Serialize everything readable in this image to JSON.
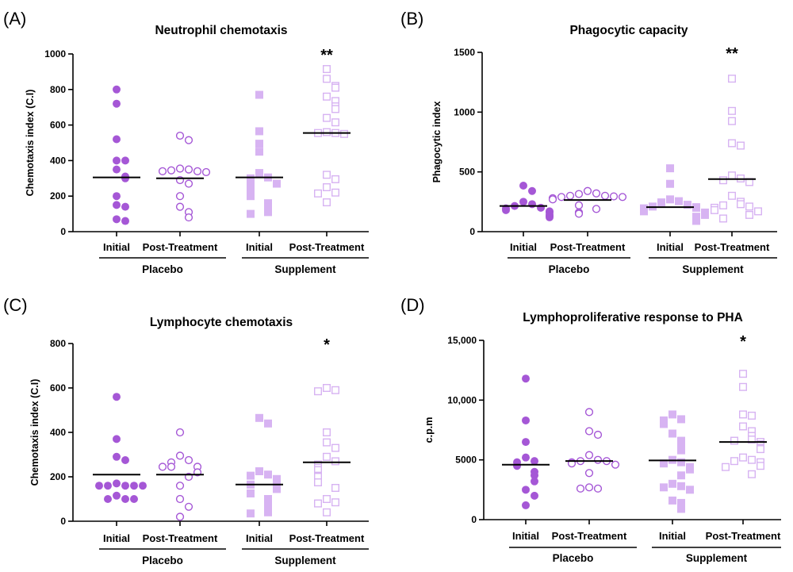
{
  "chart_data": [
    {
      "type": "scatter",
      "panel_label": "(A)",
      "title": "Neutrophil chemotaxis",
      "ylabel": "Chemotaxis index (C.I)",
      "ylim": [
        0,
        1000
      ],
      "yticks": [
        "0",
        "200",
        "400",
        "600",
        "800",
        "1000"
      ],
      "categories": [
        "Initial",
        "Post-Treatment",
        "Initial",
        "Post-Treatment"
      ],
      "groups": [
        "Placebo",
        "Supplement"
      ],
      "significance": [
        "",
        "",
        "",
        "**"
      ],
      "series": [
        {
          "marker": "filled-circle",
          "median": 305,
          "values": [
            800,
            720,
            520,
            400,
            400,
            350,
            310,
            300,
            200,
            150,
            140,
            70,
            60
          ]
        },
        {
          "marker": "open-circle",
          "median": 300,
          "values": [
            540,
            515,
            355,
            350,
            345,
            340,
            340,
            335,
            290,
            270,
            200,
            140,
            110,
            80
          ]
        },
        {
          "marker": "filled-square",
          "median": 305,
          "values": [
            770,
            565,
            495,
            450,
            330,
            305,
            300,
            285,
            270,
            250,
            240,
            210,
            200,
            160,
            135,
            110,
            100
          ]
        },
        {
          "marker": "open-square",
          "median": 555,
          "values": [
            915,
            860,
            820,
            810,
            760,
            735,
            705,
            690,
            640,
            615,
            560,
            555,
            555,
            550,
            320,
            295,
            250,
            220,
            215,
            165
          ]
        }
      ]
    },
    {
      "type": "scatter",
      "panel_label": "(B)",
      "title": "Phagocytic capacity",
      "ylabel": "Phagocytic index",
      "ylim": [
        0,
        1500
      ],
      "yticks": [
        "0",
        "500",
        "1000",
        "1500"
      ],
      "categories": [
        "Initial",
        "Post-Treatment",
        "Initial",
        "Post-Treatment"
      ],
      "groups": [
        "Placebo",
        "Supplement"
      ],
      "significance": [
        "",
        "",
        "",
        "**"
      ],
      "series": [
        {
          "marker": "filled-circle",
          "median": 215,
          "values": [
            385,
            340,
            250,
            230,
            215,
            200,
            195,
            180,
            170,
            160,
            140,
            130,
            120
          ]
        },
        {
          "marker": "open-circle",
          "median": 265,
          "values": [
            340,
            320,
            315,
            300,
            300,
            295,
            290,
            290,
            280,
            270,
            220,
            190,
            160,
            150
          ]
        },
        {
          "marker": "filled-square",
          "median": 205,
          "values": [
            530,
            400,
            270,
            255,
            245,
            225,
            210,
            205,
            200,
            195,
            185,
            170,
            160,
            150,
            140,
            125,
            110,
            100,
            90
          ]
        },
        {
          "marker": "open-square",
          "median": 440,
          "values": [
            1280,
            1010,
            925,
            740,
            720,
            470,
            445,
            430,
            415,
            300,
            250,
            230,
            220,
            210,
            200,
            180,
            170,
            140,
            110
          ]
        }
      ]
    },
    {
      "type": "scatter",
      "panel_label": "(C)",
      "title": "Lymphocyte chemotaxis",
      "ylabel": "Chemotaxis index (C.I)",
      "ylim": [
        0,
        800
      ],
      "yticks": [
        "0",
        "200",
        "400",
        "600",
        "800"
      ],
      "categories": [
        "Initial",
        "Post-Treatment",
        "Initial",
        "Post-Treatment"
      ],
      "groups": [
        "Placebo",
        "Supplement"
      ],
      "significance": [
        "",
        "",
        "",
        "*"
      ],
      "series": [
        {
          "marker": "filled-circle",
          "median": 210,
          "values": [
            560,
            370,
            290,
            275,
            170,
            160,
            160,
            160,
            160,
            160,
            115,
            100,
            100,
            100
          ]
        },
        {
          "marker": "open-circle",
          "median": 210,
          "values": [
            400,
            295,
            275,
            265,
            245,
            245,
            245,
            220,
            200,
            160,
            100,
            65,
            20
          ]
        },
        {
          "marker": "filled-square",
          "median": 165,
          "values": [
            465,
            440,
            225,
            210,
            205,
            190,
            175,
            165,
            155,
            145,
            125,
            100,
            80,
            50,
            40,
            35
          ]
        },
        {
          "marker": "open-square",
          "median": 265,
          "values": [
            600,
            590,
            585,
            400,
            355,
            330,
            290,
            270,
            255,
            240,
            230,
            205,
            200,
            175,
            150,
            100,
            85,
            80,
            40
          ]
        }
      ]
    },
    {
      "type": "scatter",
      "panel_label": "(D)",
      "title": "Lymphoproliferative response to PHA",
      "ylabel": "c.p.m",
      "ylim": [
        0,
        15000
      ],
      "yticks": [
        "0",
        "5000",
        "10,000",
        "15,000"
      ],
      "categories": [
        "Initial",
        "Post-Treatment",
        "Initial",
        "Post-Treatment"
      ],
      "groups": [
        "Placebo",
        "Supplement"
      ],
      "significance": [
        "",
        "",
        "",
        "*"
      ],
      "series": [
        {
          "marker": "filled-circle",
          "median": 4600,
          "values": [
            11800,
            8300,
            6500,
            5200,
            4900,
            4800,
            4500,
            4000,
            3700,
            3200,
            2500,
            2000,
            1200
          ]
        },
        {
          "marker": "open-circle",
          "median": 4900,
          "values": [
            9000,
            7400,
            7100,
            5400,
            5000,
            4900,
            4900,
            4800,
            4700,
            4600,
            3900,
            2700,
            2600,
            2600
          ]
        },
        {
          "marker": "filled-square",
          "median": 4950,
          "values": [
            8800,
            8400,
            8300,
            8000,
            7200,
            6600,
            6000,
            5800,
            5000,
            4800,
            4700,
            4400,
            4200,
            3700,
            3000,
            2800,
            2700,
            2500,
            1600,
            1400,
            900
          ]
        },
        {
          "marker": "open-square",
          "median": 6500,
          "values": [
            12200,
            11100,
            8800,
            8700,
            7800,
            7400,
            7000,
            6700,
            6600,
            6500,
            6300,
            6000,
            5900,
            5200,
            5000,
            4900,
            4800,
            4500,
            4400,
            3800
          ]
        }
      ]
    }
  ],
  "colors": {
    "placebo": "#a557d6",
    "supplement": "#d7b3f2",
    "median": "#000000",
    "axis": "#000000"
  }
}
